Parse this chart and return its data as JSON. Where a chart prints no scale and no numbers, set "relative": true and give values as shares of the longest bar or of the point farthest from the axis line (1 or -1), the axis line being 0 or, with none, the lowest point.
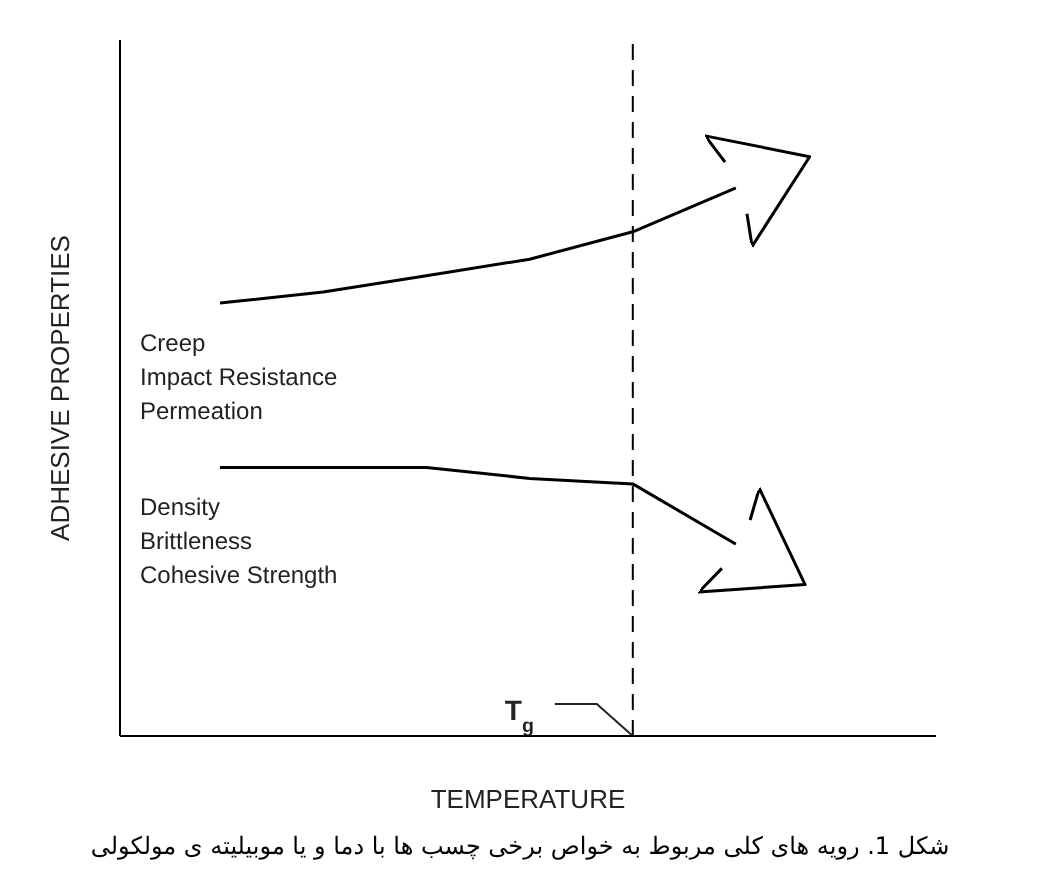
{
  "chart_data": {
    "type": "line",
    "relative": true,
    "xlabel": "TEMPERATURE",
    "ylabel": "ADHESIVE PROPERTIES",
    "categories": [
      null,
      null,
      null,
      null,
      null,
      null
    ],
    "grid": false,
    "legend": false,
    "marker": "none",
    "line_style": "solid",
    "series": [
      {
        "name": "Creep\nImpact Resistance\nPermeation",
        "color": "#000000",
        "values": [
          0.79,
          0.81,
          0.84,
          0.87,
          0.92,
          1
        ]
      },
      {
        "name": "Density\nBrittleness\nCohesive Strength",
        "color": "#000000",
        "values": [
          0.49,
          0.49,
          0.49,
          0.47,
          0.46,
          0.35
        ]
      }
    ],
    "ref_lines": [
      {
        "axis": "x",
        "label": "T$_{g}$",
        "line_style": "dashed"
      }
    ],
    "annotations": [
      "شکل 1. رویه های کلی مربوط به خواص برخی چسب ها با دما و یا موبیلیته ی مولکولی"
    ]
  }
}
